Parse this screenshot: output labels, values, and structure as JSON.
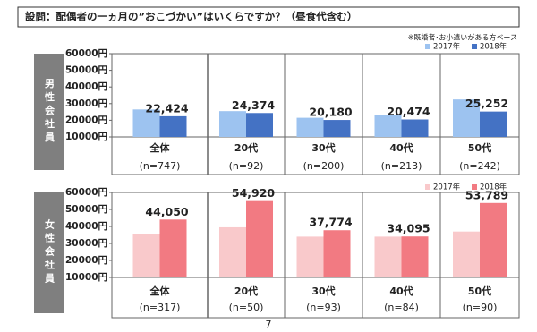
{
  "header": {
    "title": "設問：配偶者の一ヵ月の”おこづかい”はいくらですか？（昼食代含む）",
    "note": "※既婚者･お小遣いがある方ベース"
  },
  "page_number": "7",
  "chart_data": [
    {
      "type": "bar",
      "group_label": "男性会社員",
      "categories": [
        "全体",
        "20代",
        "30代",
        "40代",
        "50代"
      ],
      "category_notes": [
        "(n=747)",
        "(n=92)",
        "(n=200)",
        "(n=213)",
        "(n=242)"
      ],
      "series": [
        {
          "name": "2017年",
          "color": "#9dc3f0",
          "values": [
            26500,
            25500,
            21500,
            23000,
            32500
          ]
        },
        {
          "name": "2018年",
          "color": "#4472c4",
          "values": [
            22424,
            24374,
            20180,
            20474,
            25252
          ],
          "value_labels": [
            "22,424",
            "24,374",
            "20,180",
            "20,474",
            "25,252"
          ]
        }
      ],
      "ylim": [
        10000,
        60000
      ],
      "yticks": [
        {
          "value": 10000,
          "label": "10000円"
        },
        {
          "value": 20000,
          "label": "20000円"
        },
        {
          "value": 30000,
          "label": "30000円"
        },
        {
          "value": 40000,
          "label": "40000円"
        },
        {
          "value": 50000,
          "label": "50000円"
        },
        {
          "value": 60000,
          "label": "60000円"
        }
      ],
      "grid": false,
      "legend": "top-right"
    },
    {
      "type": "bar",
      "group_label": "女性会社員",
      "categories": [
        "全体",
        "20代",
        "30代",
        "40代",
        "50代"
      ],
      "category_notes": [
        "(n=317)",
        "(n=50)",
        "(n=93)",
        "(n=84)",
        "(n=90)"
      ],
      "series": [
        {
          "name": "2017年",
          "color": "#f9c9cb",
          "values": [
            35500,
            39500,
            34000,
            34000,
            37000
          ]
        },
        {
          "name": "2018年",
          "color": "#f27a82",
          "values": [
            44050,
            54920,
            37774,
            34095,
            53789
          ],
          "value_labels": [
            "44,050",
            "54,920",
            "37,774",
            "34,095",
            "53,789"
          ]
        }
      ],
      "ylim": [
        10000,
        60000
      ],
      "yticks": [
        {
          "value": 10000,
          "label": "10000円"
        },
        {
          "value": 20000,
          "label": "20000円"
        },
        {
          "value": 30000,
          "label": "30000円"
        },
        {
          "value": 40000,
          "label": "40000円"
        },
        {
          "value": 50000,
          "label": "50000円"
        },
        {
          "value": 60000,
          "label": "60000円"
        }
      ],
      "grid": false,
      "legend": "top-right"
    }
  ]
}
